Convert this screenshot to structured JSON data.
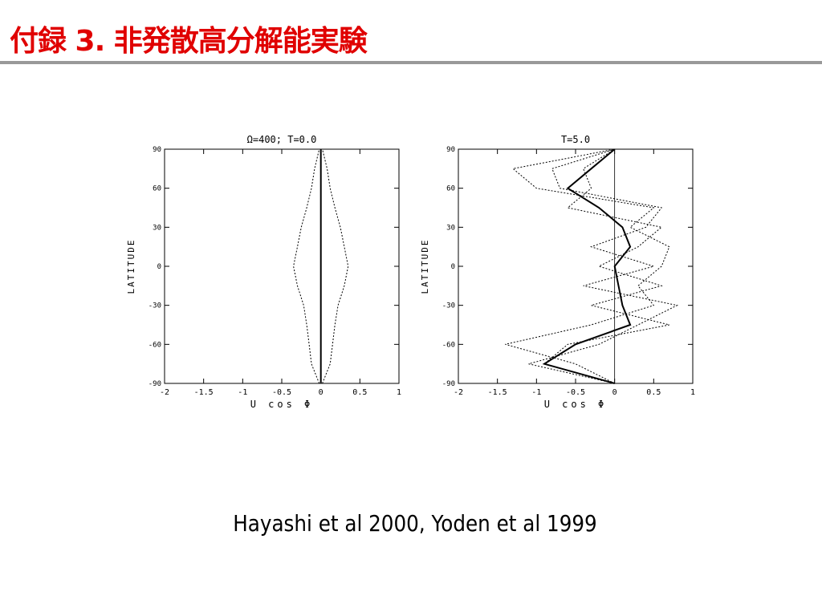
{
  "header": {
    "title": "付録 3. 非発散高分解能実験"
  },
  "caption": "Hayashi et al 2000, Yoden et al 1999",
  "chart_data": [
    {
      "type": "line",
      "title": "Ω=400;  T=0.0",
      "xlabel": "U cos Φ",
      "ylabel": "LATITUDE",
      "xlim": [
        -2,
        1
      ],
      "ylim": [
        -90,
        90
      ],
      "xticks": [
        -2,
        -1.5,
        -1,
        -0.5,
        0,
        0.5,
        1
      ],
      "yticks": [
        -90,
        -60,
        -30,
        0,
        30,
        60,
        90
      ],
      "y": [
        -90,
        -75,
        -60,
        -45,
        -30,
        -15,
        0,
        15,
        30,
        45,
        60,
        75,
        90
      ],
      "series": [
        {
          "color": "#000000",
          "style": "dashed",
          "values": [
            -0.02,
            -0.12,
            -0.15,
            -0.18,
            -0.22,
            -0.3,
            -0.35,
            -0.3,
            -0.25,
            -0.18,
            -0.12,
            -0.08,
            -0.02
          ]
        },
        {
          "color": "#000000",
          "style": "dashed",
          "values": [
            0.02,
            0.12,
            0.15,
            0.18,
            0.22,
            0.3,
            0.35,
            0.3,
            0.25,
            0.18,
            0.12,
            0.08,
            0.02
          ]
        },
        {
          "color": "#000000",
          "style": "solid",
          "values": [
            0,
            0,
            0,
            0,
            0,
            0,
            0,
            0,
            0,
            0,
            0,
            0,
            0
          ]
        }
      ]
    },
    {
      "type": "line",
      "title": "T=5.0",
      "xlabel": "U cos Φ",
      "ylabel": "LATITUDE",
      "xlim": [
        -2,
        1
      ],
      "ylim": [
        -90,
        90
      ],
      "xticks": [
        -2,
        -1.5,
        -1,
        -0.5,
        0,
        0.5,
        1
      ],
      "yticks": [
        -90,
        -60,
        -30,
        0,
        30,
        60,
        90
      ],
      "y": [
        -90,
        -75,
        -60,
        -45,
        -30,
        -15,
        0,
        15,
        30,
        45,
        60,
        75,
        90
      ],
      "series": [
        {
          "color": "#000000",
          "style": "dashed",
          "values": [
            0,
            -0.5,
            -1.4,
            -0.3,
            0.5,
            0.3,
            0.6,
            0.7,
            0.2,
            0.5,
            -1.0,
            -1.3,
            0
          ]
        },
        {
          "color": "#000000",
          "style": "dashed",
          "values": [
            0,
            -0.9,
            -0.6,
            0.7,
            -0.3,
            0.6,
            -0.2,
            0.3,
            0.6,
            -0.6,
            -0.3,
            -0.4,
            0
          ]
        },
        {
          "color": "#000000",
          "style": "dashed",
          "values": [
            0,
            -1.1,
            -0.2,
            0.3,
            0.8,
            -0.4,
            0.5,
            -0.3,
            0.4,
            0.6,
            -0.7,
            -0.8,
            0
          ]
        },
        {
          "color": "#000000",
          "style": "solid",
          "values": [
            0,
            -0.9,
            -0.5,
            0.2,
            0.1,
            0.05,
            0.0,
            0.2,
            0.1,
            -0.2,
            -0.6,
            -0.3,
            0
          ]
        }
      ]
    }
  ]
}
